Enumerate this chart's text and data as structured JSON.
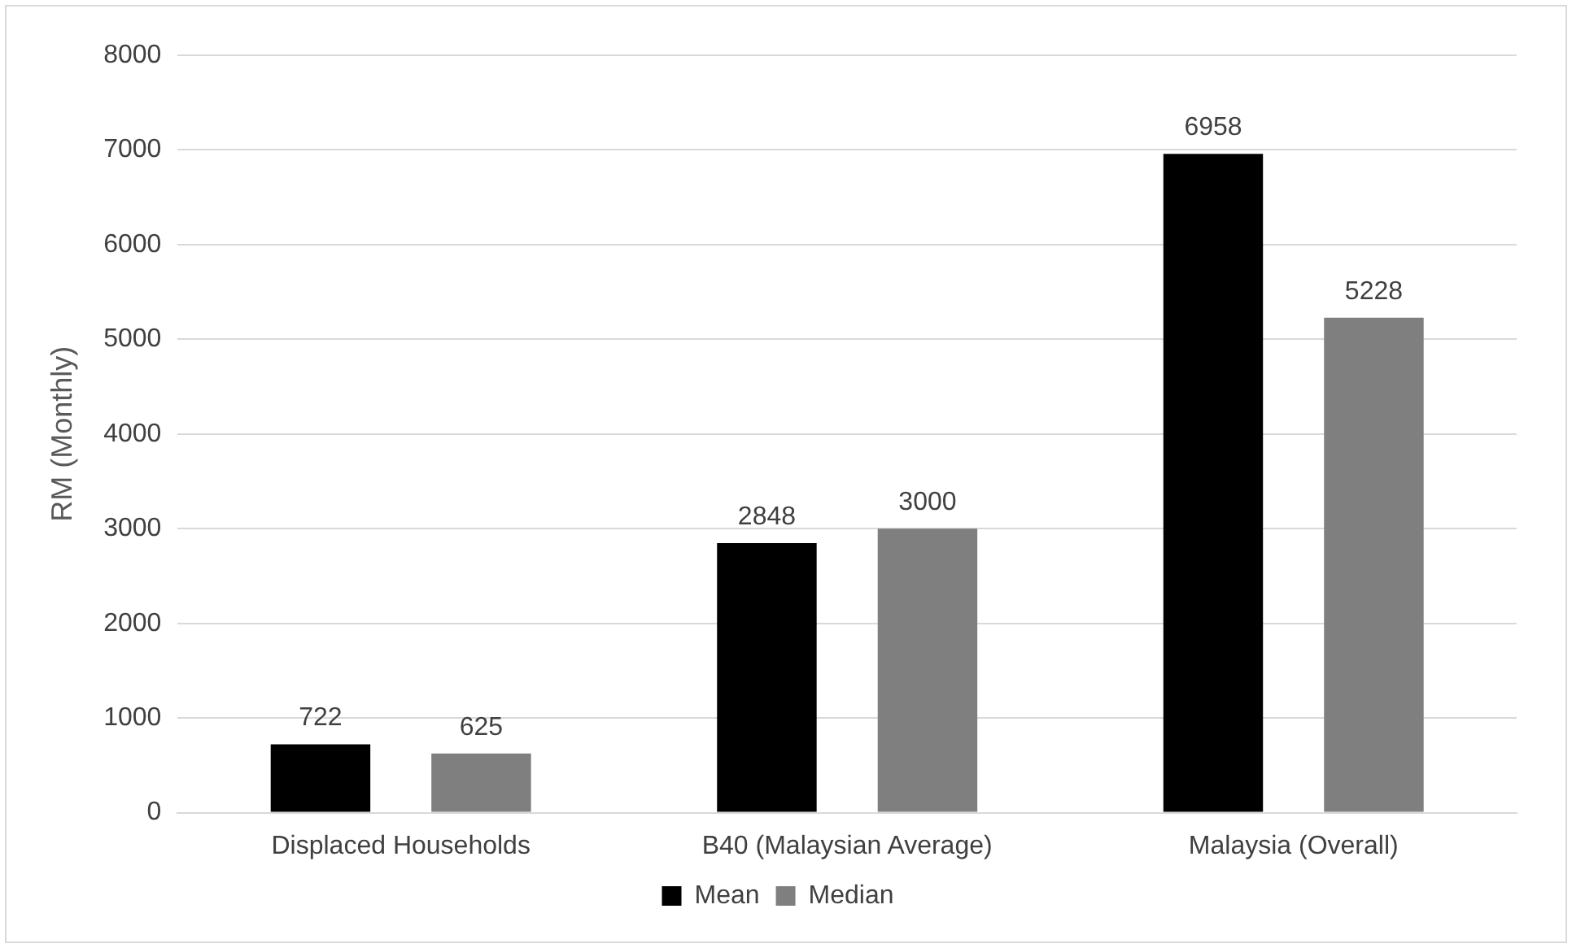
{
  "chart_data": {
    "type": "bar",
    "ylabel": "RM (Monthly)",
    "categories": [
      "Displaced Households",
      "B40 (Malaysian Average)",
      "Malaysia (Overall)"
    ],
    "series": [
      {
        "name": "Mean",
        "color": "#000000",
        "values": [
          722,
          2848,
          6958
        ]
      },
      {
        "name": "Median",
        "color": "#7f7f7f",
        "values": [
          625,
          3000,
          5228
        ]
      }
    ],
    "ylim": [
      0,
      8000
    ],
    "yticks": [
      0,
      1000,
      2000,
      3000,
      4000,
      5000,
      6000,
      7000,
      8000
    ],
    "grid": "y",
    "legend": "bottom",
    "data_labels": true
  }
}
